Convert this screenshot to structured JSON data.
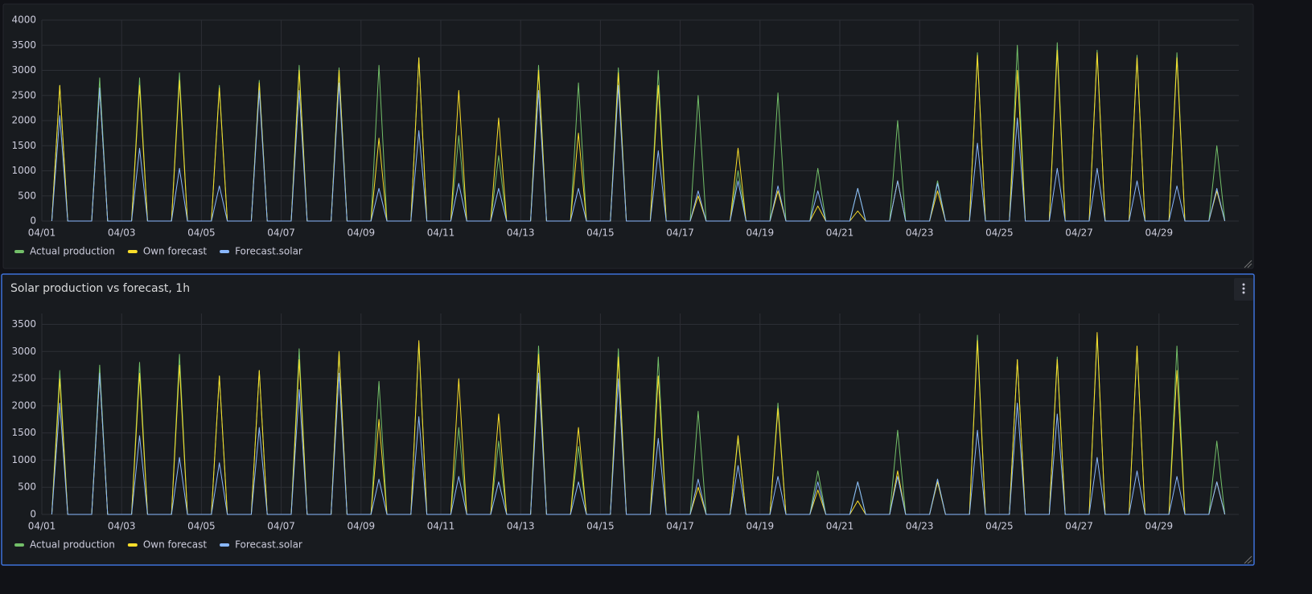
{
  "chart_data": [
    {
      "type": "line",
      "x": [
        0.25,
        0.45,
        0.65,
        1.25,
        1.45,
        1.65,
        2.25,
        2.45,
        2.65,
        3.25,
        3.45,
        3.65,
        4.25,
        4.45,
        4.65,
        5.25,
        5.45,
        5.65,
        6.25,
        6.45,
        6.65,
        7.25,
        7.45,
        7.65,
        8.25,
        8.45,
        8.65,
        9.25,
        9.45,
        9.65,
        10.25,
        10.45,
        10.65,
        11.25,
        11.45,
        11.65,
        12.25,
        12.45,
        12.65,
        13.25,
        13.45,
        13.65,
        14.25,
        14.45,
        14.65,
        15.25,
        15.45,
        15.65,
        16.25,
        16.45,
        16.65,
        17.25,
        17.45,
        17.65,
        18.25,
        18.45,
        18.65,
        19.25,
        19.45,
        19.65,
        20.25,
        20.45,
        20.65,
        21.25,
        21.45,
        21.65,
        22.25,
        22.45,
        22.65,
        23.25,
        23.45,
        23.65,
        24.25,
        24.45,
        24.65,
        25.25,
        25.45,
        25.65,
        26.25,
        26.45,
        26.65,
        27.25,
        27.45,
        27.65,
        28.25,
        28.45,
        28.65,
        29.25,
        29.45,
        29.65
      ],
      "series": [
        {
          "name": "Actual production",
          "color": "#73bf69",
          "values": [
            0,
            2700,
            0,
            0,
            2850,
            0,
            0,
            2850,
            0,
            0,
            2950,
            0,
            0,
            2700,
            0,
            0,
            2800,
            0,
            0,
            3100,
            0,
            0,
            3050,
            0,
            0,
            3100,
            0,
            0,
            3250,
            0,
            0,
            1700,
            0,
            0,
            1300,
            0,
            0,
            3100,
            0,
            0,
            2750,
            0,
            0,
            3050,
            0,
            0,
            3000,
            0,
            0,
            2500,
            0,
            0,
            1000,
            0,
            0,
            2550,
            0,
            0,
            1050,
            0,
            0,
            650,
            0,
            0,
            2000,
            0,
            0,
            800,
            0,
            0,
            3350,
            0,
            0,
            3500,
            0,
            0,
            3550,
            0,
            0,
            3400,
            0,
            0,
            3300,
            0,
            0,
            3350,
            0,
            0,
            1500,
            0
          ]
        },
        {
          "name": "Own forecast",
          "color": "#fade2a",
          "values": [
            0,
            2700,
            0,
            0,
            2650,
            0,
            0,
            2700,
            0,
            0,
            2800,
            0,
            0,
            2650,
            0,
            0,
            2750,
            0,
            0,
            3000,
            0,
            0,
            3000,
            0,
            0,
            1650,
            0,
            0,
            3250,
            0,
            0,
            2600,
            0,
            0,
            2050,
            0,
            0,
            3000,
            0,
            0,
            1750,
            0,
            0,
            2950,
            0,
            0,
            2700,
            0,
            0,
            500,
            0,
            0,
            1450,
            0,
            0,
            600,
            0,
            0,
            300,
            0,
            0,
            200,
            0,
            0,
            800,
            0,
            0,
            600,
            0,
            0,
            3300,
            0,
            0,
            3000,
            0,
            0,
            3400,
            0,
            0,
            3350,
            0,
            0,
            3250,
            0,
            0,
            3250,
            0,
            0,
            600,
            0
          ]
        },
        {
          "name": "Forecast.solar",
          "color": "#8ab8ff",
          "values": [
            0,
            2100,
            0,
            0,
            2650,
            0,
            0,
            1450,
            0,
            0,
            1050,
            0,
            0,
            700,
            0,
            0,
            2600,
            0,
            0,
            2600,
            0,
            0,
            2750,
            0,
            0,
            650,
            0,
            0,
            1800,
            0,
            0,
            750,
            0,
            0,
            650,
            0,
            0,
            2600,
            0,
            0,
            650,
            0,
            0,
            2700,
            0,
            0,
            1400,
            0,
            0,
            600,
            0,
            0,
            800,
            0,
            0,
            700,
            0,
            0,
            600,
            0,
            0,
            650,
            0,
            0,
            800,
            0,
            0,
            750,
            0,
            0,
            1550,
            0,
            0,
            2050,
            0,
            0,
            1050,
            0,
            0,
            1050,
            0,
            0,
            800,
            0,
            0,
            700,
            0,
            0,
            650,
            0
          ]
        }
      ],
      "xlim": [
        0,
        30
      ],
      "ylim": [
        0,
        4000
      ],
      "xticks": [
        {
          "value": 0,
          "label": "04/01"
        },
        {
          "value": 2,
          "label": "04/03"
        },
        {
          "value": 4,
          "label": "04/05"
        },
        {
          "value": 6,
          "label": "04/07"
        },
        {
          "value": 8,
          "label": "04/09"
        },
        {
          "value": 10,
          "label": "04/11"
        },
        {
          "value": 12,
          "label": "04/13"
        },
        {
          "value": 14,
          "label": "04/15"
        },
        {
          "value": 16,
          "label": "04/17"
        },
        {
          "value": 18,
          "label": "04/19"
        },
        {
          "value": 20,
          "label": "04/21"
        },
        {
          "value": 22,
          "label": "04/23"
        },
        {
          "value": 24,
          "label": "04/25"
        },
        {
          "value": 26,
          "label": "04/27"
        },
        {
          "value": 28,
          "label": "04/29"
        }
      ],
      "yticks": [
        0,
        500,
        1000,
        1500,
        2000,
        2500,
        3000,
        3500,
        4000
      ],
      "grid": true
    },
    {
      "type": "line",
      "title": "Solar production vs forecast, 1h",
      "x": [
        0.25,
        0.45,
        0.65,
        1.25,
        1.45,
        1.65,
        2.25,
        2.45,
        2.65,
        3.25,
        3.45,
        3.65,
        4.25,
        4.45,
        4.65,
        5.25,
        5.45,
        5.65,
        6.25,
        6.45,
        6.65,
        7.25,
        7.45,
        7.65,
        8.25,
        8.45,
        8.65,
        9.25,
        9.45,
        9.65,
        10.25,
        10.45,
        10.65,
        11.25,
        11.45,
        11.65,
        12.25,
        12.45,
        12.65,
        13.25,
        13.45,
        13.65,
        14.25,
        14.45,
        14.65,
        15.25,
        15.45,
        15.65,
        16.25,
        16.45,
        16.65,
        17.25,
        17.45,
        17.65,
        18.25,
        18.45,
        18.65,
        19.25,
        19.45,
        19.65,
        20.25,
        20.45,
        20.65,
        21.25,
        21.45,
        21.65,
        22.25,
        22.45,
        22.65,
        23.25,
        23.45,
        23.65,
        24.25,
        24.45,
        24.65,
        25.25,
        25.45,
        25.65,
        26.25,
        26.45,
        26.65,
        27.25,
        27.45,
        27.65,
        28.25,
        28.45,
        28.65,
        29.25,
        29.45,
        29.65
      ],
      "series": [
        {
          "name": "Actual production",
          "color": "#73bf69",
          "values": [
            0,
            2650,
            0,
            0,
            2750,
            0,
            0,
            2800,
            0,
            0,
            2950,
            0,
            0,
            2550,
            0,
            0,
            2650,
            0,
            0,
            3050,
            0,
            0,
            3000,
            0,
            0,
            2450,
            0,
            0,
            3150,
            0,
            0,
            1600,
            0,
            0,
            1350,
            0,
            0,
            3100,
            0,
            0,
            1250,
            0,
            0,
            3050,
            0,
            0,
            2900,
            0,
            0,
            1900,
            0,
            0,
            1400,
            0,
            0,
            2050,
            0,
            0,
            800,
            0,
            0,
            600,
            0,
            0,
            1550,
            0,
            0,
            650,
            0,
            0,
            3300,
            0,
            0,
            2850,
            0,
            0,
            2900,
            0,
            0,
            3300,
            0,
            0,
            3050,
            0,
            0,
            3100,
            0,
            0,
            1350,
            0
          ]
        },
        {
          "name": "Own forecast",
          "color": "#fade2a",
          "values": [
            0,
            2500,
            0,
            0,
            2600,
            0,
            0,
            2600,
            0,
            0,
            2750,
            0,
            0,
            2550,
            0,
            0,
            2650,
            0,
            0,
            2850,
            0,
            0,
            3000,
            0,
            0,
            1750,
            0,
            0,
            3200,
            0,
            0,
            2500,
            0,
            0,
            1850,
            0,
            0,
            2950,
            0,
            0,
            1600,
            0,
            0,
            2900,
            0,
            0,
            2550,
            0,
            0,
            500,
            0,
            0,
            1450,
            0,
            0,
            1950,
            0,
            0,
            450,
            0,
            0,
            250,
            0,
            0,
            800,
            0,
            0,
            600,
            0,
            0,
            3200,
            0,
            0,
            2850,
            0,
            0,
            2850,
            0,
            0,
            3350,
            0,
            0,
            3100,
            0,
            0,
            2650,
            0,
            0,
            600,
            0
          ]
        },
        {
          "name": "Forecast.solar",
          "color": "#8ab8ff",
          "values": [
            0,
            2050,
            0,
            0,
            2600,
            0,
            0,
            1450,
            0,
            0,
            1050,
            0,
            0,
            950,
            0,
            0,
            1600,
            0,
            0,
            2300,
            0,
            0,
            2600,
            0,
            0,
            650,
            0,
            0,
            1800,
            0,
            0,
            700,
            0,
            0,
            600,
            0,
            0,
            2600,
            0,
            0,
            600,
            0,
            0,
            2500,
            0,
            0,
            1400,
            0,
            0,
            650,
            0,
            0,
            900,
            0,
            0,
            700,
            0,
            0,
            600,
            0,
            0,
            600,
            0,
            0,
            700,
            0,
            0,
            650,
            0,
            0,
            1550,
            0,
            0,
            2050,
            0,
            0,
            1850,
            0,
            0,
            1050,
            0,
            0,
            800,
            0,
            0,
            700,
            0,
            0,
            600,
            0
          ]
        }
      ],
      "xlim": [
        0,
        30
      ],
      "ylim": [
        0,
        3700
      ],
      "xticks": [
        {
          "value": 0,
          "label": "04/01"
        },
        {
          "value": 2,
          "label": "04/03"
        },
        {
          "value": 4,
          "label": "04/05"
        },
        {
          "value": 6,
          "label": "04/07"
        },
        {
          "value": 8,
          "label": "04/09"
        },
        {
          "value": 10,
          "label": "04/11"
        },
        {
          "value": 12,
          "label": "04/13"
        },
        {
          "value": 14,
          "label": "04/15"
        },
        {
          "value": 16,
          "label": "04/17"
        },
        {
          "value": 18,
          "label": "04/19"
        },
        {
          "value": 20,
          "label": "04/21"
        },
        {
          "value": 22,
          "label": "04/23"
        },
        {
          "value": 24,
          "label": "04/25"
        },
        {
          "value": 26,
          "label": "04/27"
        },
        {
          "value": 28,
          "label": "04/29"
        }
      ],
      "yticks": [
        0,
        500,
        1000,
        1500,
        2000,
        2500,
        3000,
        3500
      ],
      "grid": true
    }
  ]
}
